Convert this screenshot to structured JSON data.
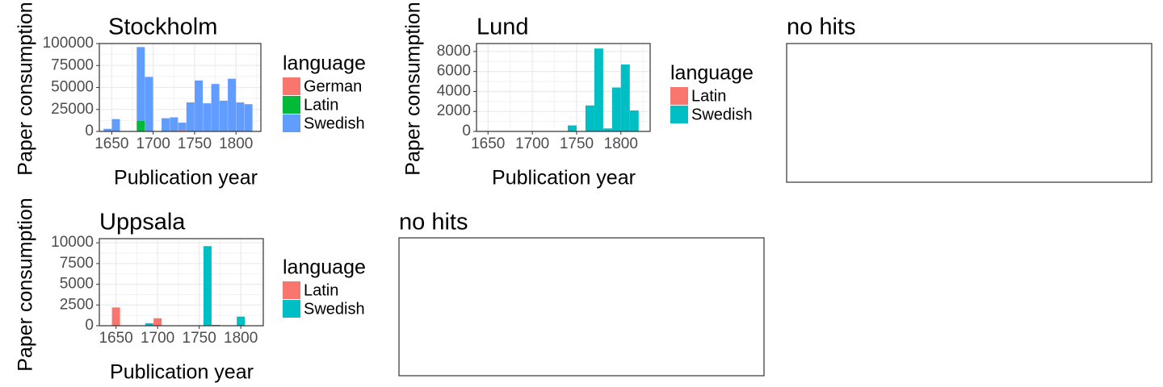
{
  "chart_data": [
    {
      "type": "bar",
      "stacked": true,
      "title": "Stockholm",
      "xlabel": "Publication year",
      "ylabel": "Paper consumption",
      "xlim": [
        1635,
        1830
      ],
      "ylim": [
        0,
        100000
      ],
      "xticks": [
        1650,
        1700,
        1750,
        1800
      ],
      "yticks": [
        0,
        25000,
        50000,
        75000,
        100000
      ],
      "x": [
        1645,
        1655,
        1665,
        1675,
        1685,
        1695,
        1705,
        1715,
        1725,
        1735,
        1745,
        1755,
        1765,
        1775,
        1785,
        1795,
        1805,
        1815
      ],
      "series": [
        {
          "name": "German",
          "color": "#F8766D",
          "values": [
            0,
            0,
            0,
            0,
            0,
            0,
            0,
            0,
            0,
            1000,
            0,
            0,
            0,
            0,
            0,
            0,
            0,
            0
          ]
        },
        {
          "name": "Latin",
          "color": "#00BA38",
          "values": [
            0,
            0,
            0,
            0,
            12000,
            0,
            0,
            0,
            0,
            0,
            0,
            0,
            0,
            0,
            0,
            0,
            0,
            0
          ]
        },
        {
          "name": "Swedish",
          "color": "#619CFF",
          "values": [
            3000,
            14000,
            0,
            0,
            84000,
            62000,
            0,
            15000,
            16000,
            9000,
            33000,
            58000,
            32000,
            54000,
            35000,
            60000,
            33000,
            31000
          ]
        }
      ],
      "legend": {
        "title": "language",
        "position": "right"
      },
      "grid": true
    },
    {
      "type": "bar",
      "stacked": true,
      "title": "Lund",
      "xlabel": "Publication year",
      "ylabel": "Paper consumption",
      "xlim": [
        1637,
        1833
      ],
      "ylim": [
        0,
        8800
      ],
      "xticks": [
        1650,
        1700,
        1750,
        1800
      ],
      "yticks": [
        0,
        2000,
        4000,
        6000,
        8000
      ],
      "x": [
        1745,
        1765,
        1775,
        1785,
        1795,
        1805,
        1815
      ],
      "series": [
        {
          "name": "Latin",
          "color": "#F8766D",
          "values": [
            0,
            0,
            0,
            0,
            0,
            0,
            0
          ]
        },
        {
          "name": "Swedish",
          "color": "#00BFC4",
          "values": [
            600,
            2600,
            8300,
            300,
            4400,
            6700,
            2100
          ]
        }
      ],
      "legend": {
        "title": "language",
        "position": "right"
      },
      "grid": true
    },
    {
      "type": "bar",
      "title": "no hits",
      "empty": true
    },
    {
      "type": "bar",
      "stacked": true,
      "title": "Uppsala",
      "xlabel": "Publication year",
      "ylabel": "Paper consumption",
      "xlim": [
        1630,
        1827
      ],
      "ylim": [
        0,
        10500
      ],
      "xticks": [
        1650,
        1700,
        1750,
        1800
      ],
      "yticks": [
        0,
        2500,
        5000,
        7500,
        10000
      ],
      "x": [
        1650,
        1690,
        1700,
        1760,
        1770,
        1800
      ],
      "series": [
        {
          "name": "Latin",
          "color": "#F8766D",
          "values": [
            2200,
            0,
            900,
            0,
            0,
            0
          ]
        },
        {
          "name": "Swedish",
          "color": "#00BFC4",
          "values": [
            0,
            300,
            0,
            9600,
            100,
            1100
          ]
        }
      ],
      "legend": {
        "title": "language",
        "position": "right"
      },
      "grid": true
    },
    {
      "type": "bar",
      "title": "no hits",
      "empty": true
    }
  ]
}
